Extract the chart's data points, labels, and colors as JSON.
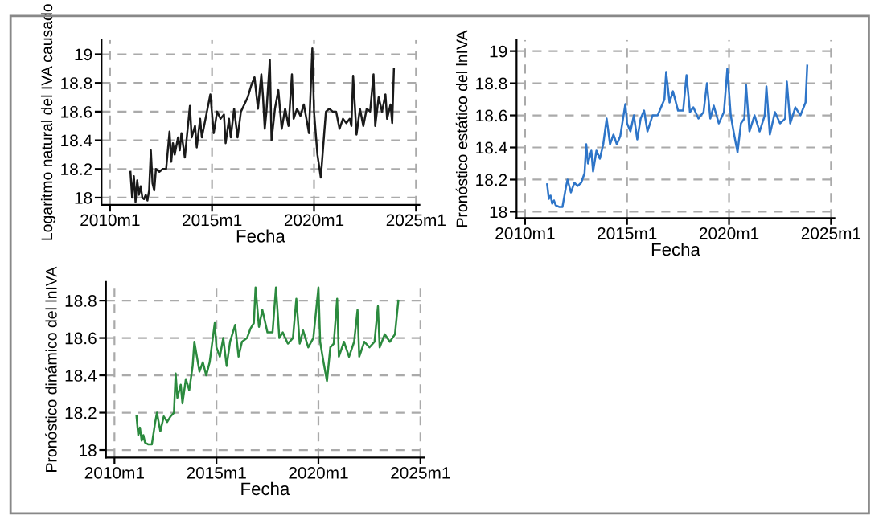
{
  "chart_data": [
    {
      "type": "line",
      "xlabel": "Fecha",
      "ylabel": "Logaritmo natural del IVA causado",
      "grid": true,
      "line_style": "solid",
      "xlim": [
        "2009-08",
        "2025-03"
      ],
      "xticks": [
        {
          "value": "2010-01",
          "label": "2010m1"
        },
        {
          "value": "2015-01",
          "label": "2015m1"
        },
        {
          "value": "2020-01",
          "label": "2020m1"
        },
        {
          "value": "2025-01",
          "label": "2025m1"
        }
      ],
      "ylim": [
        17.95,
        19.1
      ],
      "yticks": [
        18,
        18.2,
        18.4,
        18.6,
        18.8,
        19
      ],
      "series": [
        {
          "color": "#1a1a1a",
          "x": [
            "2011-01",
            "2011-02",
            "2011-03",
            "2011-04",
            "2011-05",
            "2011-06",
            "2011-07",
            "2011-08",
            "2011-09",
            "2011-10",
            "2011-11",
            "2011-12",
            "2012-01",
            "2012-02",
            "2012-03",
            "2012-04",
            "2012-06",
            "2012-08",
            "2012-10",
            "2012-12",
            "2013-01",
            "2013-02",
            "2013-03",
            "2013-05",
            "2013-06",
            "2013-07",
            "2013-09",
            "2013-12",
            "2014-01",
            "2014-03",
            "2014-04",
            "2014-06",
            "2014-07",
            "2014-10",
            "2014-12",
            "2015-02",
            "2015-04",
            "2015-06",
            "2015-08",
            "2015-09",
            "2015-11",
            "2015-12",
            "2016-02",
            "2016-04",
            "2016-06",
            "2016-08",
            "2016-10",
            "2016-12",
            "2017-02",
            "2017-04",
            "2017-06",
            "2017-07",
            "2017-08",
            "2017-09",
            "2017-11",
            "2017-12",
            "2018-02",
            "2018-04",
            "2018-06",
            "2018-08",
            "2018-10",
            "2018-12",
            "2019-01",
            "2019-03",
            "2019-05",
            "2019-07",
            "2019-09",
            "2019-10",
            "2019-12",
            "2020-01",
            "2020-03",
            "2020-05",
            "2020-07",
            "2020-08",
            "2020-10",
            "2020-12",
            "2021-02",
            "2021-04",
            "2021-06",
            "2021-08",
            "2021-10",
            "2021-11",
            "2021-12",
            "2022-02",
            "2022-04",
            "2022-06",
            "2022-08",
            "2022-10",
            "2022-12",
            "2023-01",
            "2023-03",
            "2023-05",
            "2023-07",
            "2023-08",
            "2023-10",
            "2023-11",
            "2023-12"
          ],
          "values": [
            18.18,
            18.0,
            18.15,
            17.97,
            18.12,
            18.02,
            18.08,
            18.0,
            17.99,
            18.02,
            17.98,
            18.05,
            18.33,
            18.1,
            18.05,
            18.2,
            18.18,
            18.2,
            18.2,
            18.46,
            18.25,
            18.38,
            18.3,
            18.42,
            18.33,
            18.45,
            18.28,
            18.64,
            18.42,
            18.5,
            18.35,
            18.55,
            18.42,
            18.6,
            18.72,
            18.45,
            18.6,
            18.55,
            18.58,
            18.38,
            18.55,
            18.42,
            18.62,
            18.42,
            18.6,
            18.65,
            18.7,
            18.78,
            18.84,
            18.62,
            18.86,
            18.7,
            18.48,
            18.6,
            18.96,
            18.4,
            18.62,
            18.75,
            18.48,
            18.62,
            18.5,
            18.86,
            18.55,
            18.62,
            18.57,
            18.65,
            18.52,
            18.45,
            19.04,
            18.6,
            18.3,
            18.14,
            18.45,
            18.6,
            18.62,
            18.6,
            18.6,
            18.48,
            18.55,
            18.52,
            18.55,
            18.5,
            18.85,
            18.44,
            18.62,
            18.5,
            18.62,
            18.6,
            18.86,
            18.5,
            18.7,
            18.6,
            18.72,
            18.55,
            18.65,
            18.52,
            18.9
          ]
        }
      ]
    },
    {
      "type": "line",
      "xlabel": "Fecha",
      "ylabel": "Pronóstico estático del lnIVA",
      "grid": true,
      "line_style": "solid",
      "xlim": [
        "2009-08",
        "2025-03"
      ],
      "xticks": [
        {
          "value": "2010-01",
          "label": "2010m1"
        },
        {
          "value": "2015-01",
          "label": "2015m1"
        },
        {
          "value": "2020-01",
          "label": "2020m1"
        },
        {
          "value": "2025-01",
          "label": "2025m1"
        }
      ],
      "ylim": [
        17.96,
        19.07
      ],
      "yticks": [
        18,
        18.2,
        18.4,
        18.6,
        18.8,
        19
      ],
      "series": [
        {
          "color": "#2e75c8",
          "x": [
            "2011-02",
            "2011-03",
            "2011-04",
            "2011-05",
            "2011-06",
            "2011-07",
            "2011-09",
            "2011-11",
            "2012-01",
            "2012-02",
            "2012-04",
            "2012-06",
            "2012-08",
            "2012-10",
            "2012-12",
            "2013-01",
            "2013-02",
            "2013-04",
            "2013-05",
            "2013-07",
            "2013-09",
            "2013-11",
            "2014-01",
            "2014-03",
            "2014-05",
            "2014-07",
            "2014-09",
            "2014-12",
            "2015-01",
            "2015-03",
            "2015-05",
            "2015-07",
            "2015-09",
            "2015-11",
            "2016-01",
            "2016-04",
            "2016-07",
            "2016-09",
            "2016-11",
            "2016-12",
            "2017-02",
            "2017-04",
            "2017-07",
            "2017-10",
            "2017-12",
            "2018-02",
            "2018-04",
            "2018-07",
            "2018-10",
            "2018-12",
            "2019-02",
            "2019-04",
            "2019-07",
            "2019-10",
            "2019-12",
            "2020-02",
            "2020-04",
            "2020-06",
            "2020-08",
            "2020-10",
            "2020-11",
            "2021-01",
            "2021-04",
            "2021-07",
            "2021-10",
            "2021-11",
            "2022-01",
            "2022-04",
            "2022-07",
            "2022-10",
            "2022-11",
            "2023-01",
            "2023-04",
            "2023-07",
            "2023-10",
            "2023-11"
          ],
          "values": [
            18.17,
            18.08,
            18.1,
            18.05,
            18.07,
            18.04,
            18.03,
            18.03,
            18.15,
            18.2,
            18.12,
            18.18,
            18.16,
            18.18,
            18.24,
            18.42,
            18.3,
            18.38,
            18.25,
            18.38,
            18.33,
            18.42,
            18.58,
            18.42,
            18.48,
            18.42,
            18.47,
            18.67,
            18.55,
            18.5,
            18.6,
            18.45,
            18.58,
            18.63,
            18.5,
            18.6,
            18.6,
            18.65,
            18.7,
            18.87,
            18.68,
            18.75,
            18.63,
            18.63,
            18.85,
            18.62,
            18.65,
            18.58,
            18.62,
            18.8,
            18.58,
            18.66,
            18.55,
            18.62,
            18.89,
            18.6,
            18.48,
            18.37,
            18.55,
            18.58,
            18.79,
            18.5,
            18.6,
            18.5,
            18.6,
            18.78,
            18.48,
            18.62,
            18.55,
            18.58,
            18.81,
            18.55,
            18.65,
            18.6,
            18.68,
            18.91
          ]
        }
      ]
    },
    {
      "type": "line",
      "xlabel": "Fecha",
      "ylabel": "Pronóstico dinámico del lnIVA",
      "grid": true,
      "line_style": "solid",
      "xlim": [
        "2009-08",
        "2025-03"
      ],
      "xticks": [
        {
          "value": "2010-01",
          "label": "2010m1"
        },
        {
          "value": "2015-01",
          "label": "2015m1"
        },
        {
          "value": "2020-01",
          "label": "2020m1"
        },
        {
          "value": "2025-01",
          "label": "2025m1"
        }
      ],
      "ylim": [
        17.96,
        18.9
      ],
      "yticks": [
        18,
        18.2,
        18.4,
        18.6,
        18.8
      ],
      "series": [
        {
          "color": "#2b8a3e",
          "x": [
            "2011-02",
            "2011-03",
            "2011-04",
            "2011-05",
            "2011-06",
            "2011-07",
            "2011-09",
            "2011-11",
            "2012-01",
            "2012-02",
            "2012-04",
            "2012-06",
            "2012-08",
            "2012-10",
            "2012-12",
            "2013-01",
            "2013-02",
            "2013-04",
            "2013-05",
            "2013-07",
            "2013-09",
            "2013-11",
            "2013-12",
            "2014-03",
            "2014-05",
            "2014-07",
            "2014-09",
            "2014-12",
            "2015-01",
            "2015-03",
            "2015-05",
            "2015-07",
            "2015-09",
            "2015-12",
            "2016-02",
            "2016-04",
            "2016-07",
            "2016-09",
            "2016-11",
            "2016-12",
            "2017-02",
            "2017-04",
            "2017-07",
            "2017-10",
            "2017-12",
            "2018-02",
            "2018-04",
            "2018-07",
            "2018-10",
            "2018-12",
            "2019-02",
            "2019-04",
            "2019-07",
            "2019-10",
            "2020-01",
            "2020-02",
            "2020-04",
            "2020-06",
            "2020-08",
            "2020-10",
            "2020-12",
            "2021-01",
            "2021-04",
            "2021-07",
            "2021-10",
            "2021-12",
            "2022-01",
            "2022-04",
            "2022-07",
            "2022-10",
            "2022-12",
            "2023-01",
            "2023-04",
            "2023-07",
            "2023-10",
            "2023-12"
          ],
          "values": [
            18.18,
            18.08,
            18.12,
            18.05,
            18.08,
            18.04,
            18.03,
            18.03,
            18.15,
            18.2,
            18.1,
            18.18,
            18.15,
            18.18,
            18.2,
            18.41,
            18.28,
            18.35,
            18.25,
            18.38,
            18.32,
            18.45,
            18.58,
            18.42,
            18.47,
            18.4,
            18.47,
            18.68,
            18.55,
            18.5,
            18.6,
            18.45,
            18.58,
            18.67,
            18.5,
            18.58,
            18.6,
            18.65,
            18.68,
            18.87,
            18.66,
            18.75,
            18.63,
            18.63,
            18.87,
            18.6,
            18.63,
            18.57,
            18.6,
            18.81,
            18.57,
            18.64,
            18.55,
            18.6,
            18.87,
            18.58,
            18.47,
            18.37,
            18.55,
            18.57,
            18.81,
            18.5,
            18.58,
            18.5,
            18.58,
            18.75,
            18.5,
            18.58,
            18.55,
            18.58,
            18.77,
            18.55,
            18.62,
            18.58,
            18.62,
            18.8
          ]
        }
      ]
    }
  ]
}
